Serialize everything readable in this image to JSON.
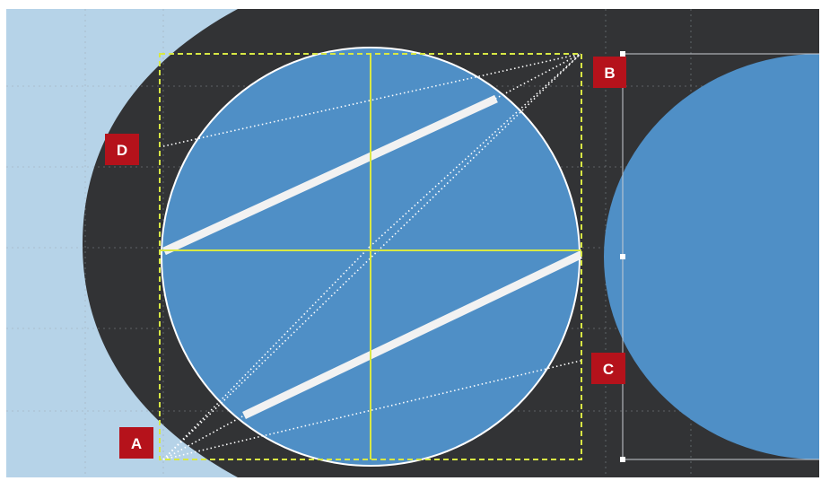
{
  "colors": {
    "outer_background": "#ffffff",
    "light_panel": "#b6d3e8",
    "dark_shape": "#323335",
    "circle_fill": "#4f8fc6",
    "circle_stroke": "#ffffff",
    "guide_yellow": "#d8e844",
    "marker_fill": "#b5121b",
    "marker_text": "#ffffff",
    "stripe": "#f2f2f2",
    "dotted": "#ffffff",
    "grid": "#9aa3ab"
  },
  "markers": [
    {
      "id": "A",
      "label": "A"
    },
    {
      "id": "B",
      "label": "B"
    },
    {
      "id": "C",
      "label": "C"
    },
    {
      "id": "D",
      "label": "D"
    }
  ]
}
